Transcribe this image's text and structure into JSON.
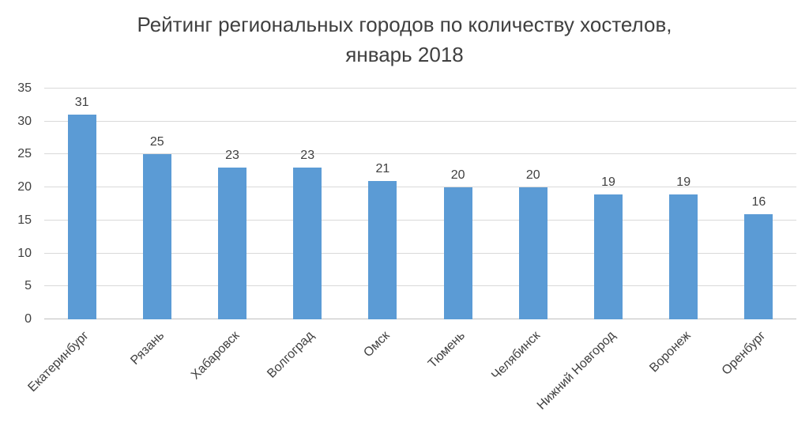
{
  "chart_data": {
    "type": "bar",
    "title": "Рейтинг региональных городов по количеству хостелов, январь 2018",
    "title_lines": [
      "Рейтинг региональных городов по количеству хостелов,",
      "январь 2018"
    ],
    "categories": [
      "Екатеринбург",
      "Рязань",
      "Хабаровск",
      "Волгоград",
      "Омск",
      "Тюмень",
      "Челябинск",
      "Нижний Новгород",
      "Воронеж",
      "Оренбург"
    ],
    "values": [
      31,
      25,
      23,
      23,
      21,
      20,
      20,
      19,
      19,
      16
    ],
    "xlabel": "",
    "ylabel": "",
    "ylim": [
      0,
      35
    ],
    "yticks": [
      0,
      5,
      10,
      15,
      20,
      25,
      30,
      35
    ],
    "grid": true,
    "legend": "none",
    "data_labels": true,
    "category_label_rotation_deg": 45
  },
  "colors": {
    "bar": "#5B9BD5",
    "grid": "#D9D9D9",
    "axis": "#BFBFBF",
    "text": "#404040",
    "background": "#FFFFFF"
  }
}
